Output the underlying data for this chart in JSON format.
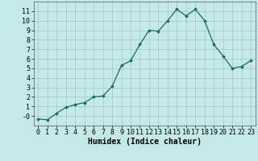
{
  "x": [
    0,
    1,
    2,
    3,
    4,
    5,
    6,
    7,
    8,
    9,
    10,
    11,
    12,
    13,
    14,
    15,
    16,
    17,
    18,
    19,
    20,
    21,
    22,
    23
  ],
  "y": [
    -0.3,
    -0.4,
    0.3,
    0.9,
    1.2,
    1.4,
    2.0,
    2.1,
    3.1,
    5.3,
    5.8,
    7.5,
    9.0,
    8.9,
    10.0,
    11.2,
    10.5,
    11.2,
    10.0,
    7.5,
    6.3,
    5.0,
    5.2,
    5.8
  ],
  "xlabel": "Humidex (Indice chaleur)",
  "bg_color": "#c5e8e8",
  "grid_color": "#a0c8c8",
  "line_color": "#1a6b5a",
  "marker_color": "#1a6b5a",
  "ylim": [
    -1,
    12
  ],
  "xlim": [
    -0.5,
    23.5
  ],
  "yticks": [
    0,
    1,
    2,
    3,
    4,
    5,
    6,
    7,
    8,
    9,
    10,
    11
  ],
  "xticks": [
    0,
    1,
    2,
    3,
    4,
    5,
    6,
    7,
    8,
    9,
    10,
    11,
    12,
    13,
    14,
    15,
    16,
    17,
    18,
    19,
    20,
    21,
    22,
    23
  ],
  "xlabel_fontsize": 7,
  "tick_fontsize": 6,
  "ylabel_label": "-0"
}
